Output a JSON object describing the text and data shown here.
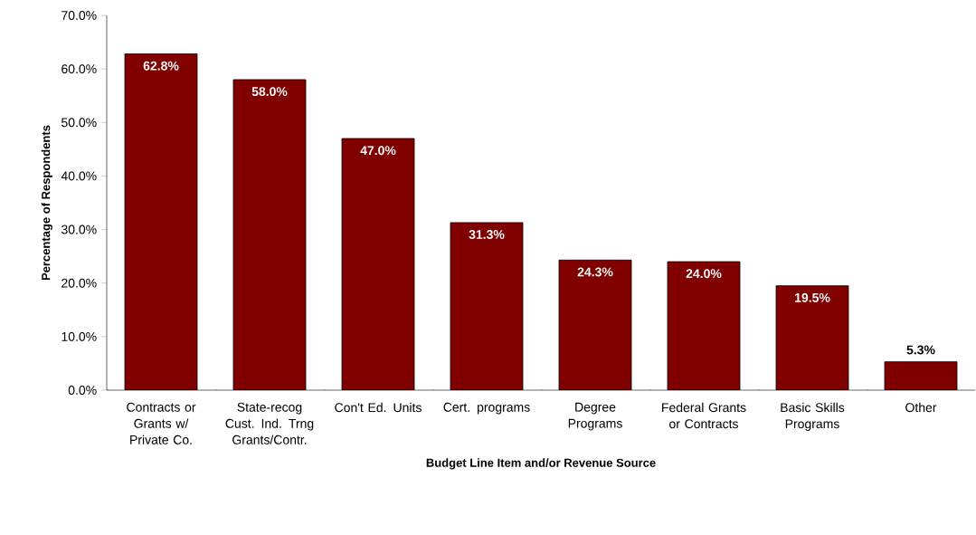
{
  "chart_data": {
    "type": "bar",
    "xlabel": "Budget Line Item and/or Revenue Source",
    "ylabel": "Percentage of Respondents",
    "categories": [
      "Contracts or Grants w/ Private Co.",
      "State-recog Cust. Ind. Trng Grants/Contr.",
      "Con't Ed. Units",
      "Cert. programs",
      "Degree Programs",
      "Federal Grants or Contracts",
      "Basic Skills Programs",
      "Other"
    ],
    "values": [
      62.8,
      58.0,
      47.0,
      31.3,
      24.3,
      24.0,
      19.5,
      5.3
    ],
    "value_labels": [
      "62.8%",
      "58.0%",
      "47.0%",
      "31.3%",
      "24.3%",
      "24.0%",
      "19.5%",
      "5.3%"
    ],
    "color": "#800000",
    "ylim": [
      0,
      70
    ],
    "yticks": [
      {
        "value": 0,
        "label": "0.0%"
      },
      {
        "value": 10,
        "label": "10.0%"
      },
      {
        "value": 20,
        "label": "20.0%"
      },
      {
        "value": 30,
        "label": "30.0%"
      },
      {
        "value": 40,
        "label": "40.0%"
      },
      {
        "value": 50,
        "label": "50.0%"
      },
      {
        "value": 60,
        "label": "60.0%"
      },
      {
        "value": 70,
        "label": "70.0%"
      }
    ],
    "grid": false
  }
}
